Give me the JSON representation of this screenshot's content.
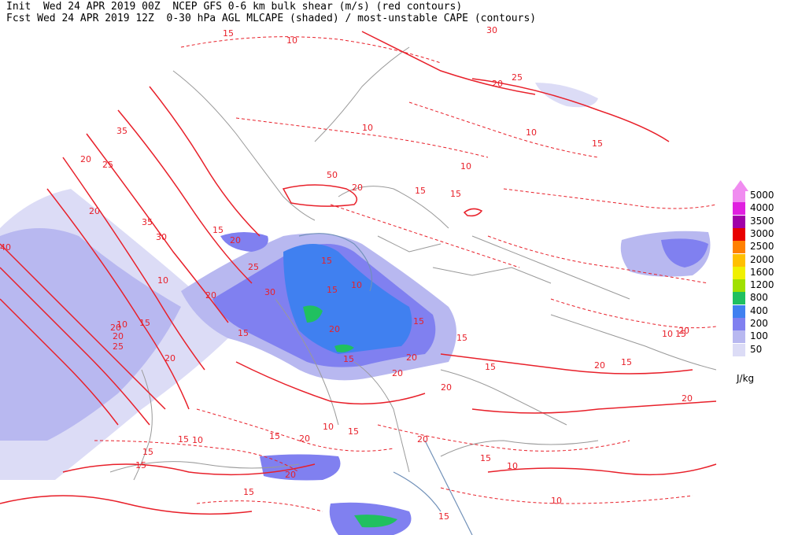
{
  "header": {
    "line1": "Init  Wed 24 APR 2019 00Z  NCEP GFS 0-6 km bulk shear (m/s) (red contours)",
    "line2": "Fcst Wed 24 APR 2019 12Z  0-30 hPa AGL MLCAPE (shaded) / most-unstable CAPE (contours)"
  },
  "legend": {
    "units": "J/kg",
    "levels": [
      {
        "label": "5000",
        "color": "#f08cf0"
      },
      {
        "label": "4000",
        "color": "#e020e0"
      },
      {
        "label": "3500",
        "color": "#a000a8"
      },
      {
        "label": "3000",
        "color": "#e80000"
      },
      {
        "label": "2500",
        "color": "#ff8000"
      },
      {
        "label": "2000",
        "color": "#ffc000"
      },
      {
        "label": "1600",
        "color": "#f0f000"
      },
      {
        "label": "1200",
        "color": "#a0e000"
      },
      {
        "label": "800",
        "color": "#20c060"
      },
      {
        "label": "400",
        "color": "#4080f0"
      },
      {
        "label": "200",
        "color": "#8080f0"
      },
      {
        "label": "100",
        "color": "#b8b8f0"
      },
      {
        "label": "50",
        "color": "#dcdcf6"
      }
    ]
  },
  "contour_labels": [
    "15",
    "10",
    "30",
    "25",
    "20",
    "35",
    "40",
    "10",
    "15",
    "20",
    "25",
    "30",
    "35",
    "20",
    "15",
    "10",
    "50",
    "15",
    "20",
    "10",
    "15",
    "20",
    "25",
    "30",
    "10",
    "15",
    "20",
    "15",
    "10",
    "20",
    "15",
    "20",
    "10",
    "15",
    "20",
    "25",
    "20",
    "15",
    "10",
    "15",
    "20",
    "15",
    "20",
    "15",
    "15",
    "20",
    "15",
    "15",
    "20",
    "15",
    "10",
    "15",
    "20",
    "15",
    "20",
    "10",
    "15",
    "10",
    "15",
    "10",
    "15",
    "20",
    "15",
    "20",
    "20"
  ],
  "colors": {
    "shear": "#e8202a",
    "cape_contour": "#7090b8",
    "coast": "#999999",
    "top_arrow": "#f08cf0"
  }
}
